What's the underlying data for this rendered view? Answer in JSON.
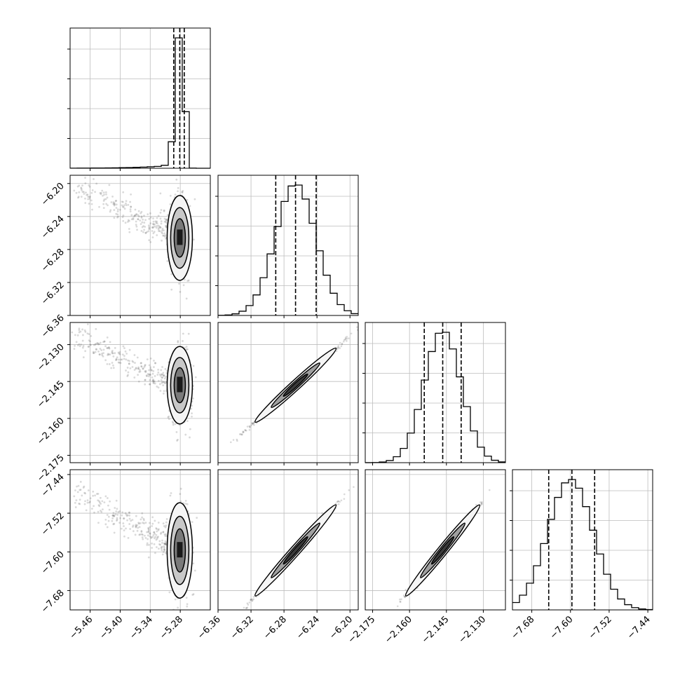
{
  "chart_data": {
    "type": "corner",
    "grid": true,
    "parameters": [
      {
        "index": 0,
        "range": [
          -5.5,
          -5.22
        ],
        "ticks": [
          "−5.46",
          "−5.40",
          "−5.34",
          "−5.28"
        ],
        "tick_values": [
          -5.46,
          -5.4,
          -5.34,
          -5.28
        ],
        "quantiles": [
          -5.293,
          -5.281,
          -5.272
        ],
        "hist_peak": -5.278,
        "hist_width": 0.01,
        "hist_tail_direction": "left"
      },
      {
        "index": 1,
        "range": [
          -6.36,
          -6.19
        ],
        "ticks": [
          "−6.36",
          "−6.32",
          "−6.28",
          "−6.24",
          "−6.20"
        ],
        "tick_values": [
          -6.36,
          -6.32,
          -6.28,
          -6.24,
          -6.2
        ],
        "quantiles": [
          -6.29,
          -6.266,
          -6.241
        ],
        "hist_peak": -6.266,
        "hist_width": 0.0245
      },
      {
        "index": 2,
        "range": [
          -2.178,
          -2.121
        ],
        "ticks": [
          "−2.175",
          "−2.160",
          "−2.145",
          "−2.130"
        ],
        "tick_values": [
          -2.175,
          -2.16,
          -2.145,
          -2.13
        ],
        "quantiles": [
          -2.154,
          -2.1465,
          -2.139
        ],
        "hist_peak": -2.1465,
        "hist_width": 0.0075
      },
      {
        "index": 3,
        "range": [
          -7.72,
          -7.43
        ],
        "ticks": [
          "−7.68",
          "−7.60",
          "−7.52",
          "−7.44"
        ],
        "tick_values": [
          -7.68,
          -7.6,
          -7.52,
          -7.44
        ],
        "quantiles": [
          -7.645,
          -7.597,
          -7.55
        ],
        "hist_peak": -7.6,
        "hist_width": 0.047
      }
    ]
  }
}
